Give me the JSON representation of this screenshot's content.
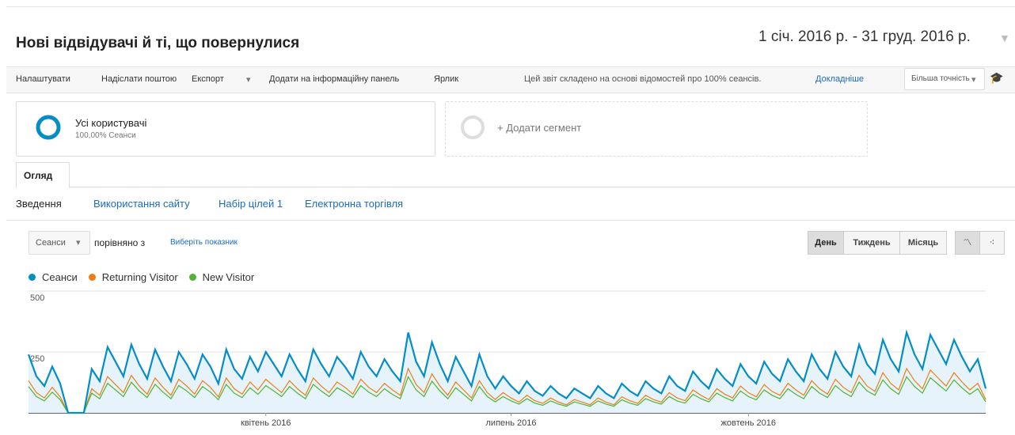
{
  "header": {
    "title": "Нові відвідувачі й ті, що повернулися",
    "date_range": "1 січ. 2016 р. - 31 груд. 2016 р."
  },
  "toolbar": {
    "items": [
      "Налаштувати",
      "Надіслати поштою",
      "Експорт",
      "Додати на інформаційну панель",
      "Ярлик"
    ],
    "report_note": "Цей звіт складено на основі відомостей про 100% сеансів.",
    "details_link": "Докладніше",
    "precision": "Більша точність"
  },
  "segments": {
    "all_users": "Усі користувачі",
    "all_users_sub": "100,00% Сеанси",
    "add_segment": "+ Додати сегмент"
  },
  "tab": "Огляд",
  "subtabs": [
    "Зведення",
    "Використання сайту",
    "Набір цілей 1",
    "Електронна торгівля"
  ],
  "controls": {
    "metric": "Сеанси",
    "compare": "порівняно з",
    "choose_metric": "Виберіть показник",
    "periods": [
      "День",
      "Тиждень",
      "Місяць"
    ]
  },
  "chart_data": {
    "type": "line",
    "xlim": [
      0,
      121
    ],
    "xticks": [
      {
        "value": 30,
        "label": "квітень 2016"
      },
      {
        "value": 61,
        "label": "липень 2016"
      },
      {
        "value": 91,
        "label": "жовтень 2016"
      }
    ],
    "ylim": [
      0,
      500
    ],
    "yticks": [
      250,
      500
    ],
    "grid": true,
    "series": [
      {
        "name": "Сеанси",
        "color": "#058dc7",
        "values": [
          240,
          150,
          110,
          190,
          120,
          0,
          0,
          0,
          180,
          130,
          270,
          210,
          150,
          280,
          200,
          140,
          260,
          190,
          130,
          250,
          200,
          140,
          240,
          190,
          120,
          260,
          180,
          140,
          230,
          170,
          250,
          200,
          150,
          240,
          180,
          130,
          260,
          200,
          150,
          230,
          190,
          140,
          250,
          190,
          150,
          220,
          170,
          130,
          330,
          210,
          150,
          290,
          200,
          130,
          230,
          170,
          110,
          240,
          150,
          100,
          150,
          110,
          80,
          130,
          90,
          70,
          110,
          80,
          60,
          100,
          80,
          60,
          110,
          80,
          60,
          120,
          90,
          70,
          130,
          100,
          80,
          150,
          110,
          90,
          170,
          130,
          100,
          180,
          140,
          110,
          200,
          150,
          120,
          210,
          160,
          130,
          220,
          170,
          130,
          240,
          180,
          140,
          250,
          190,
          150,
          280,
          200,
          160,
          300,
          220,
          170,
          330,
          240,
          180,
          320,
          260,
          200,
          300,
          230,
          170,
          220,
          100
        ]
      },
      {
        "name": "Returning Visitor",
        "color": "#ed7e17",
        "values": [
          132,
          83,
          61,
          105,
          66,
          0,
          0,
          0,
          99,
          72,
          149,
          116,
          83,
          154,
          110,
          77,
          143,
          105,
          72,
          138,
          110,
          77,
          132,
          105,
          66,
          143,
          99,
          77,
          127,
          94,
          138,
          110,
          83,
          132,
          99,
          72,
          143,
          110,
          83,
          127,
          105,
          77,
          138,
          105,
          83,
          121,
          94,
          72,
          182,
          116,
          83,
          160,
          110,
          72,
          127,
          94,
          61,
          132,
          83,
          55,
          83,
          61,
          44,
          72,
          50,
          39,
          61,
          44,
          33,
          55,
          44,
          33,
          61,
          44,
          33,
          66,
          50,
          39,
          72,
          55,
          44,
          83,
          61,
          50,
          94,
          72,
          55,
          99,
          77,
          61,
          110,
          83,
          66,
          116,
          88,
          72,
          121,
          94,
          72,
          132,
          99,
          77,
          138,
          105,
          83,
          154,
          110,
          88,
          165,
          121,
          94,
          182,
          132,
          99,
          176,
          143,
          110,
          165,
          127,
          94,
          121,
          55
        ]
      },
      {
        "name": "New Visitor",
        "color": "#50b432",
        "values": [
          108,
          67,
          49,
          85,
          54,
          0,
          0,
          0,
          81,
          58,
          121,
          94,
          67,
          126,
          90,
          63,
          117,
          85,
          58,
          112,
          90,
          63,
          108,
          85,
          54,
          117,
          81,
          63,
          103,
          76,
          112,
          90,
          67,
          108,
          81,
          58,
          117,
          90,
          67,
          103,
          85,
          63,
          112,
          85,
          67,
          99,
          76,
          58,
          148,
          94,
          67,
          130,
          90,
          58,
          103,
          76,
          49,
          108,
          67,
          45,
          67,
          49,
          36,
          58,
          40,
          31,
          49,
          36,
          27,
          45,
          36,
          27,
          49,
          36,
          27,
          54,
          40,
          31,
          58,
          45,
          36,
          67,
          49,
          40,
          76,
          58,
          45,
          81,
          63,
          49,
          90,
          67,
          54,
          94,
          72,
          58,
          99,
          76,
          58,
          108,
          81,
          63,
          112,
          85,
          67,
          126,
          90,
          72,
          135,
          99,
          76,
          148,
          108,
          81,
          144,
          117,
          90,
          135,
          103,
          76,
          99,
          45
        ]
      }
    ]
  }
}
